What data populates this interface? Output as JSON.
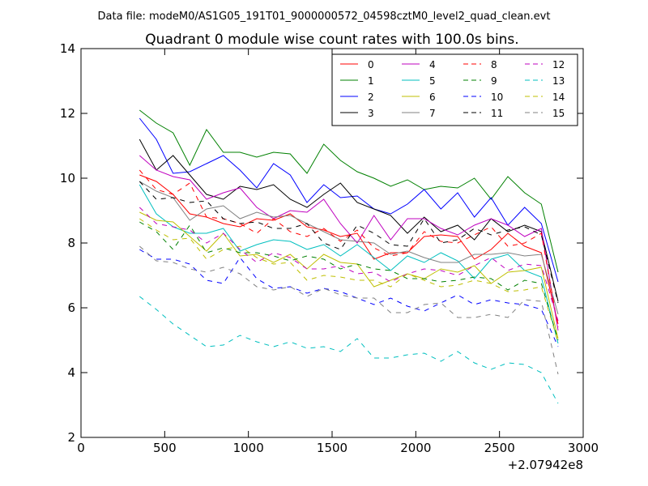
{
  "chart_data": {
    "type": "line",
    "suptitle": "Data file: modeM0/AS1G05_191T01_9000000572_04598cztM0_level2_quad_clean.evt",
    "title": "Quadrant 0 module wise count rates with 100.0s bins.",
    "xlabel": "",
    "ylabel": "",
    "x_offset_label": "+2.07942e8",
    "xlim": [
      0,
      3000
    ],
    "ylim": [
      2,
      14
    ],
    "xticks": [
      0,
      500,
      1000,
      1500,
      2000,
      2500,
      3000
    ],
    "yticks": [
      2,
      4,
      6,
      8,
      10,
      12,
      14
    ],
    "grid": false,
    "legend": {
      "placement": "top-right",
      "columns": 4
    },
    "x": [
      350,
      450,
      550,
      650,
      750,
      850,
      950,
      1050,
      1150,
      1250,
      1350,
      1450,
      1550,
      1650,
      1750,
      1850,
      1950,
      2050,
      2150,
      2250,
      2350,
      2450,
      2550,
      2650,
      2750,
      2850
    ],
    "series": [
      {
        "name": "0",
        "color": "#ff0000",
        "dash": "solid",
        "values": [
          10.1,
          9.9,
          9.5,
          8.9,
          8.8,
          8.6,
          8.5,
          8.75,
          8.7,
          8.9,
          8.5,
          8.4,
          8.2,
          8.3,
          7.5,
          7.7,
          7.7,
          8.2,
          8.25,
          8.2,
          7.5,
          7.8,
          8.3,
          7.9,
          7.7,
          5.5
        ]
      },
      {
        "name": "1",
        "color": "#008000",
        "dash": "solid",
        "values": [
          12.1,
          11.7,
          11.4,
          10.4,
          11.5,
          10.8,
          10.8,
          10.65,
          10.8,
          10.75,
          10.15,
          11.05,
          10.55,
          10.2,
          10.0,
          9.75,
          9.95,
          9.65,
          9.75,
          9.7,
          10.0,
          9.35,
          10.05,
          9.55,
          9.2,
          7.1
        ]
      },
      {
        "name": "2",
        "color": "#0000ff",
        "dash": "solid",
        "values": [
          11.85,
          11.2,
          10.15,
          10.2,
          10.45,
          10.7,
          10.25,
          9.7,
          10.45,
          10.1,
          9.25,
          9.8,
          9.4,
          9.45,
          9.05,
          8.9,
          9.2,
          9.65,
          9.05,
          9.55,
          8.8,
          9.4,
          8.55,
          9.1,
          8.6,
          6.8
        ]
      },
      {
        "name": "3",
        "color": "#000000",
        "dash": "solid",
        "values": [
          11.2,
          10.25,
          10.7,
          10.1,
          9.5,
          9.35,
          9.75,
          9.65,
          9.8,
          9.35,
          9.1,
          9.5,
          9.85,
          9.25,
          9.05,
          8.85,
          8.3,
          8.8,
          8.35,
          8.55,
          8.1,
          8.75,
          8.35,
          8.55,
          8.35,
          6.2
        ]
      },
      {
        "name": "4",
        "color": "#bf00bf",
        "dash": "solid",
        "values": [
          10.7,
          10.25,
          10.05,
          9.95,
          9.35,
          9.55,
          9.7,
          9.1,
          8.75,
          9.0,
          8.95,
          9.35,
          8.6,
          8.0,
          8.85,
          8.1,
          8.75,
          8.75,
          8.45,
          8.25,
          8.55,
          8.75,
          8.55,
          8.2,
          8.45,
          5.3
        ]
      },
      {
        "name": "5",
        "color": "#00bfbf",
        "dash": "solid",
        "values": [
          9.8,
          8.9,
          8.5,
          8.3,
          8.3,
          8.45,
          7.75,
          7.95,
          8.1,
          8.05,
          7.8,
          7.95,
          7.6,
          7.95,
          7.55,
          7.15,
          7.6,
          7.4,
          7.7,
          7.45,
          6.9,
          7.5,
          7.65,
          7.15,
          6.95,
          4.9
        ]
      },
      {
        "name": "6",
        "color": "#bfbf00",
        "dash": "solid",
        "values": [
          8.95,
          8.7,
          8.65,
          8.2,
          7.75,
          8.3,
          7.6,
          7.65,
          7.4,
          7.65,
          7.2,
          7.65,
          7.4,
          7.35,
          6.65,
          6.85,
          7.05,
          6.9,
          7.2,
          7.1,
          7.3,
          6.75,
          7.1,
          7.15,
          7.25,
          5.05
        ]
      },
      {
        "name": "7",
        "color": "#808080",
        "dash": "solid",
        "values": [
          9.9,
          9.6,
          9.4,
          8.7,
          9.05,
          9.15,
          8.75,
          8.95,
          8.8,
          8.85,
          8.6,
          8.35,
          8.1,
          8.05,
          8.0,
          7.65,
          7.75,
          7.55,
          7.4,
          7.4,
          7.65,
          7.65,
          7.7,
          7.6,
          7.65,
          5.8
        ]
      },
      {
        "name": "8",
        "color": "#ff0000",
        "dash": "dashed",
        "values": [
          10.25,
          9.65,
          9.5,
          9.85,
          8.8,
          8.75,
          8.6,
          8.3,
          8.75,
          8.35,
          8.2,
          8.45,
          8.05,
          8.4,
          7.85,
          7.6,
          7.7,
          8.35,
          8.05,
          8.0,
          8.25,
          8.5,
          7.9,
          8.0,
          8.3,
          5.4
        ]
      },
      {
        "name": "9",
        "color": "#008000",
        "dash": "dashed",
        "values": [
          8.65,
          8.35,
          7.8,
          8.55,
          7.7,
          7.85,
          7.7,
          7.7,
          7.6,
          7.45,
          7.6,
          7.5,
          7.2,
          7.35,
          7.2,
          7.15,
          6.9,
          6.9,
          6.8,
          6.85,
          6.95,
          6.9,
          6.55,
          6.85,
          6.75,
          5.0
        ]
      },
      {
        "name": "10",
        "color": "#0000ff",
        "dash": "dashed",
        "values": [
          7.8,
          7.5,
          7.5,
          7.35,
          6.85,
          6.75,
          7.55,
          6.9,
          6.6,
          6.65,
          6.45,
          6.6,
          6.5,
          6.3,
          6.1,
          6.3,
          6.05,
          5.9,
          6.15,
          6.4,
          6.1,
          6.25,
          6.15,
          6.1,
          5.95,
          4.8
        ]
      },
      {
        "name": "11",
        "color": "#000000",
        "dash": "dashed",
        "values": [
          9.9,
          9.35,
          9.4,
          9.25,
          9.3,
          8.75,
          8.6,
          8.65,
          8.45,
          8.45,
          8.6,
          8.0,
          7.8,
          8.55,
          8.3,
          7.95,
          7.9,
          8.75,
          8.0,
          8.1,
          8.45,
          8.25,
          8.4,
          8.5,
          8.25,
          6.15
        ]
      },
      {
        "name": "12",
        "color": "#bf00bf",
        "dash": "dashed",
        "values": [
          9.1,
          8.6,
          8.5,
          8.4,
          8.0,
          8.3,
          7.8,
          7.4,
          7.7,
          7.55,
          7.2,
          7.2,
          7.3,
          7.05,
          7.1,
          6.8,
          7.05,
          7.2,
          7.15,
          7.0,
          7.3,
          7.55,
          7.15,
          7.35,
          7.3,
          5.6
        ]
      },
      {
        "name": "13",
        "color": "#00bfbf",
        "dash": "dashed",
        "values": [
          6.35,
          5.95,
          5.5,
          5.15,
          4.8,
          4.85,
          5.15,
          4.95,
          4.8,
          4.95,
          4.75,
          4.8,
          4.65,
          5.05,
          4.45,
          4.45,
          4.55,
          4.6,
          4.35,
          4.65,
          4.3,
          4.1,
          4.3,
          4.25,
          4.0,
          3.05
        ]
      },
      {
        "name": "14",
        "color": "#bfbf00",
        "dash": "dashed",
        "values": [
          8.75,
          8.4,
          8.1,
          8.15,
          7.5,
          7.8,
          7.9,
          7.55,
          7.35,
          7.4,
          6.85,
          7.0,
          6.95,
          6.85,
          6.85,
          6.65,
          7.05,
          6.85,
          6.65,
          6.7,
          6.85,
          6.75,
          6.5,
          6.55,
          6.65,
          4.95
        ]
      },
      {
        "name": "15",
        "color": "#808080",
        "dash": "dashed",
        "values": [
          7.9,
          7.45,
          7.4,
          7.2,
          7.1,
          7.25,
          7.05,
          6.65,
          6.55,
          6.65,
          6.35,
          6.6,
          6.4,
          6.3,
          6.3,
          5.85,
          5.85,
          6.1,
          6.15,
          5.7,
          5.7,
          5.8,
          5.7,
          6.25,
          6.2,
          3.95
        ]
      }
    ]
  }
}
